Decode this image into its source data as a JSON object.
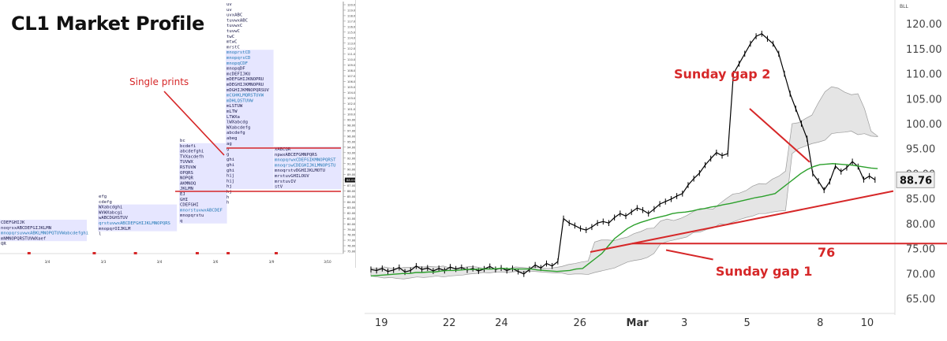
{
  "left_chart": {
    "title": "CL1 Market Profile",
    "annotation": "Single prints",
    "price_axis_labels": [
      "120.00",
      "119.00",
      "118.00",
      "117.00",
      "116.00",
      "115.00",
      "114.00",
      "113.00",
      "112.00",
      "111.00",
      "110.00",
      "109.00",
      "108.00",
      "107.00",
      "106.00",
      "105.00",
      "104.00",
      "103.00",
      "102.00",
      "101.00",
      "100.00",
      "99.00",
      "98.00",
      "97.00",
      "96.00",
      "95.00",
      "94.00",
      "93.00",
      "92.00",
      "91.00",
      "90.00",
      "89.00",
      "88.00",
      "87.00",
      "86.00",
      "85.00",
      "84.00",
      "83.00",
      "82.00",
      "81.00",
      "80.00",
      "79.00",
      "78.00",
      "77.00",
      "76.00",
      "75.00"
    ],
    "current_price_label": "88.00",
    "date_labels": [
      "3/4",
      "3/3",
      "3/4",
      "3/6",
      "3/9",
      "3/10"
    ],
    "date_marker_positions_pct": [
      8,
      27,
      39,
      57,
      66,
      80
    ],
    "marker_color": "#d62728",
    "profiles": [
      {
        "rows": [
          "CDEFGHIJK",
          "noqrsxABCDEFGIJKLMN",
          "mnopqrsuvwxABKLMNOPQTUVWabcdefghi",
          "mNMNOPQRSTUVWXaef",
          "QR"
        ]
      },
      {
        "rows": [
          "efg",
          "cdefg",
          "WXabcdghi",
          "WVWXabcgi",
          "wABCDGHSTUV",
          "qrstuvwxABCDEFGHIJKLMNOPQRS",
          "mnopqrOIJKLM",
          "l"
        ]
      },
      {
        "rows": [
          "bc",
          "bcdefi",
          "abcdefghi",
          "TVXacdefh",
          "TUVWX",
          "RSTUVW",
          "OPQRS",
          "NOPQR",
          "AKMNOQ",
          "JKLMN",
          "EJ",
          "GHI",
          "CDEFGHI",
          "mnorstuvwxABCDEF",
          "mnopqrstu",
          "q"
        ]
      },
      {
        "rows": [
          "uv",
          "uv",
          "uvxABC",
          "tuvwxABC",
          "tuvwxC",
          "tuvwC",
          "twC",
          "mtwC",
          "mrstC",
          "mnoprstCD",
          "mnopqrsCD",
          "mnopqCDF",
          "mnopqDF",
          "mcDEFIJKU",
          "mDEFGHIJKNOPRU",
          "mDEGHIJKMNOPRU",
          "mDGHIJKMNOPQRSUV",
          "mCGHKLMQRSTUVW",
          "mDHLQSTUVW",
          "mLSTUW",
          "mLTW",
          "LTWXa",
          "lWXabcdg",
          "WXabcdefg",
          "abcdefg",
          "abeg",
          "ag",
          "g",
          "g",
          "ghi",
          "ghi",
          "ghi",
          "hij",
          "hij",
          "hj",
          "hj",
          "h",
          "h"
        ]
      },
      {
        "rows": [
          "xABCQR",
          "npwxABCEFGMNPQRS",
          "mnopqrwxCDEFGIKMNOPQRST",
          "mnoqrswCDEGHIJKLMNOPSTU",
          "mnoqrstvDGHIJKLMOTU",
          "mrstuvGHILOUV",
          "mrstuvIV",
          "stV"
        ]
      }
    ]
  },
  "right_chart": {
    "chart_data": {
      "type": "line",
      "x_ticks": [
        "19",
        "22",
        "24",
        "26",
        "Mar",
        "3",
        "5",
        "8",
        "10"
      ],
      "y_ticks": [
        65.0,
        70.0,
        75.0,
        80.0,
        85.0,
        90.0,
        95.0,
        100.0,
        105.0,
        110.0,
        115.0,
        120.0
      ],
      "ylim": [
        62.0,
        123.5
      ],
      "currency_label": "BLL",
      "last_price": 88.76,
      "last_price_label": "88.76",
      "level_label": "76",
      "level_value": 76.0,
      "annotations": [
        "Sunday gap 2",
        "Sunday gap 1"
      ],
      "series": [
        {
          "values": [
            70.8,
            70.6,
            71.0,
            70.4,
            70.7,
            71.2,
            70.3,
            70.6,
            71.5,
            70.8,
            71.1,
            70.5,
            71.0,
            70.6,
            71.3,
            70.9,
            71.2,
            70.7,
            71.0,
            70.5,
            70.9,
            71.4,
            70.8,
            71.1,
            70.6,
            71.0,
            70.4,
            69.9,
            70.8,
            71.7,
            71.1,
            72.0,
            71.5,
            72.4,
            81.0,
            80.1,
            79.6,
            79.0,
            78.7,
            79.3,
            80.1,
            80.4,
            80.1,
            81.2,
            82.0,
            81.5,
            82.3,
            83.1,
            82.7,
            82.0,
            82.9,
            83.9,
            84.4,
            84.9,
            85.5,
            86.0,
            87.7,
            89.0,
            90.1,
            91.7,
            93.0,
            94.2,
            93.6,
            94.0,
            110.0,
            112.0,
            114.0,
            116.0,
            117.5,
            118.0,
            117.0,
            116.0,
            114.0,
            110.0,
            106.0,
            103.0,
            100.0,
            97.0,
            90.0,
            88.5,
            86.7,
            88.4,
            91.5,
            90.4,
            91.2,
            92.4,
            91.4,
            88.8,
            89.5,
            88.76
          ]
        },
        {
          "values": [
            69.5,
            69.6,
            69.7,
            69.8,
            69.9,
            70.0,
            70.0,
            70.2,
            70.2,
            70.3,
            70.3,
            70.5,
            70.6,
            70.6,
            70.7,
            70.8,
            70.8,
            70.9,
            70.9,
            70.9,
            71.0,
            71.0,
            70.9,
            70.9,
            70.9,
            70.9,
            70.7,
            70.6,
            70.5,
            70.4,
            70.5,
            70.6,
            70.9,
            71.0,
            72.0,
            73.0,
            74.0,
            75.5,
            77.0,
            78.0,
            79.0,
            79.7,
            80.2,
            80.6,
            81.0,
            81.3,
            81.6,
            82.0,
            82.2,
            82.3,
            82.5,
            82.8,
            83.0,
            83.3,
            83.5,
            83.8,
            84.0,
            84.3,
            84.6,
            84.9,
            85.2,
            85.4,
            85.7,
            86.0,
            87.0,
            88.0,
            89.0,
            90.0,
            90.8,
            91.4,
            91.8,
            91.9,
            92.0,
            91.9,
            91.8,
            91.7,
            91.5,
            91.3,
            91.1,
            91.0
          ]
        }
      ],
      "cloud_upper": [
        71.1,
        71.0,
        71.3,
        71.1,
        71.0,
        71.2,
        71.2,
        71.4,
        71.3,
        71.4,
        71.3,
        71.5,
        71.1,
        71.0,
        71.2,
        71.4,
        71.3,
        71.1,
        71.0,
        70.9,
        71.1,
        71.0,
        71.3,
        71.2,
        71.1,
        71.3,
        71.1,
        71.0,
        71.2,
        71.4,
        71.8,
        72.0,
        72.3,
        72.5,
        76.3,
        76.7,
        76.7,
        76.6,
        77.0,
        77.3,
        78.0,
        78.4,
        79.0,
        79.1,
        80.5,
        80.9,
        80.6,
        81.0,
        81.6,
        82.4,
        83.0,
        83.0,
        82.9,
        84.0,
        85.0,
        85.9,
        86.1,
        86.6,
        87.5,
        88.0,
        87.9,
        88.9,
        89.5,
        90.5,
        100.0,
        100.2,
        101.0,
        101.7,
        104.2,
        106.4,
        107.4,
        107.1,
        106.3,
        105.8,
        106.0,
        103.0,
        98.5,
        97.5
      ],
      "cloud_lower": [
        69.5,
        69.3,
        69.1,
        69.2,
        69.0,
        68.9,
        69.1,
        69.3,
        69.2,
        69.3,
        69.5,
        69.3,
        69.5,
        69.6,
        69.7,
        69.9,
        70.0,
        70.2,
        70.1,
        70.3,
        70.3,
        70.2,
        70.4,
        70.3,
        70.5,
        70.4,
        70.3,
        70.2,
        70.1,
        70.1,
        69.8,
        69.9,
        69.9,
        69.8,
        70.2,
        70.5,
        70.8,
        71.1,
        71.7,
        72.3,
        72.6,
        72.8,
        73.2,
        74.0,
        75.9,
        76.4,
        76.7,
        77.0,
        77.3,
        78.2,
        78.3,
        78.8,
        79.1,
        79.9,
        79.8,
        80.3,
        80.8,
        81.2,
        81.5,
        82.0,
        82.0,
        82.3,
        82.5,
        82.6,
        94.0,
        95.0,
        95.5,
        96.0,
        96.3,
        96.7,
        98.0,
        98.2,
        98.3,
        98.5,
        97.8,
        98.0,
        97.5,
        97.4
      ],
      "trendline_from": [
        0.42,
        74.3
      ],
      "trendline_to": [
        1.0,
        86.5
      ],
      "annotation_pointer_gap2": {
        "from": [
          0.725,
          103.0
        ],
        "to": [
          0.84,
          92.3
        ]
      },
      "annotation_pointer_gap1": {
        "from": [
          0.655,
          72.8
        ],
        "to": [
          0.565,
          74.7
        ]
      }
    }
  },
  "colors": {
    "annotation": "#d62728",
    "main_line": "#000000",
    "ma_line": "#2ca02c",
    "cloud": "#cccccc",
    "profile_highlight": "#e6e6ff",
    "profile_blue": "#1f77b4",
    "axis": "#888888"
  }
}
